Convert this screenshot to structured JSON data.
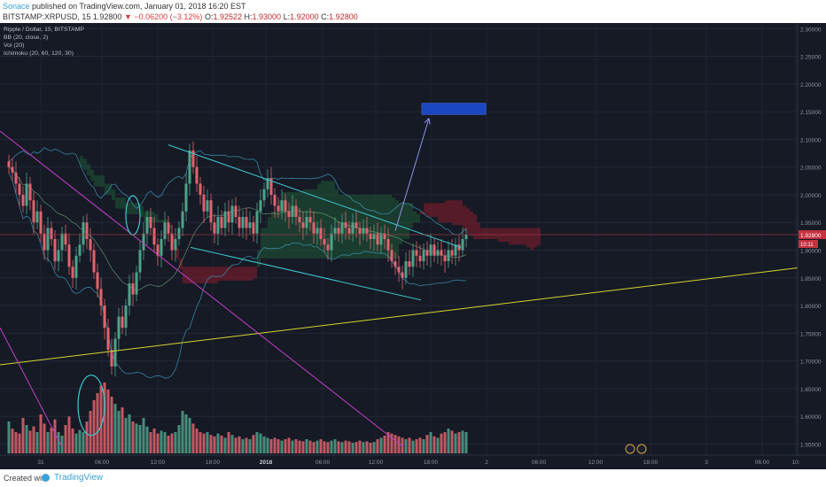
{
  "header": {
    "author": "Sonace",
    "published": " published on TradingView.com, January 01, 2018 16:20 EST",
    "symbol": "BITSTAMP:XRPUSD, 15",
    "last": "1.92800",
    "arrow": "▼",
    "change": "−0.06200 (−3.12%)",
    "o_label": "O:",
    "o_value": "1.92522",
    "h_label": "H:",
    "h_value": "1.93000",
    "l_label": "L:",
    "l_value": "1.92000",
    "c_label": "C:",
    "c_value": "1.92800"
  },
  "legend": [
    "Ripple / Dollar, 15, BITSTAMP",
    "BB (20, close, 2)",
    "Vol (20)",
    "Ichimoku (20, 60, 120, 30)"
  ],
  "price_label": "1.92800",
  "countdown": "10:11",
  "footer": {
    "created": "Created with",
    "brand": "TradingView"
  },
  "colors": {
    "background": "#161a25",
    "up": "#4ea38a",
    "down": "#e0646f",
    "trend_cyan": "#3ec9d3",
    "support_yellow": "#d6d62f",
    "resist_magenta": "#c43fc7",
    "target_box": "#1a47c0",
    "projection": "#8f94ea",
    "cloud_red": "#8b1e2e",
    "cloud_green": "#1f5a36"
  },
  "chart_data": {
    "type": "candlestick",
    "ylim": [
      1.53,
      2.31
    ],
    "y_ticks": [
      "2.30000",
      "2.25000",
      "2.20000",
      "2.15000",
      "2.10000",
      "2.05000",
      "2.00000",
      "1.95000",
      "1.90000",
      "1.85000",
      "1.80000",
      "1.75000",
      "1.70000",
      "1.65000",
      "1.60000",
      "1.55000"
    ],
    "x_ticks": [
      "31",
      "06:00",
      "12:00",
      "18:00",
      "2018",
      "06:00",
      "12:00",
      "18:00",
      "2",
      "06:00",
      "12:00",
      "18:00",
      "3",
      "06:00",
      "10:"
    ],
    "last_price": 1.928,
    "target_zone": [
      2.145,
      2.165
    ],
    "closes": [
      2.05,
      2.04,
      2.02,
      2.0,
      1.98,
      2.02,
      1.99,
      1.95,
      1.97,
      1.93,
      1.9,
      1.94,
      1.92,
      1.88,
      1.9,
      1.93,
      1.91,
      1.87,
      1.85,
      1.89,
      1.91,
      1.95,
      1.92,
      1.9,
      1.86,
      1.83,
      1.8,
      1.76,
      1.72,
      1.69,
      1.74,
      1.78,
      1.76,
      1.8,
      1.84,
      1.82,
      1.86,
      1.9,
      1.93,
      1.96,
      1.94,
      1.91,
      1.89,
      1.92,
      1.95,
      1.93,
      1.9,
      1.92,
      1.94,
      1.97,
      2.02,
      2.08,
      2.05,
      2.02,
      2.0,
      1.97,
      1.99,
      1.95,
      1.93,
      1.96,
      1.94,
      1.97,
      1.95,
      1.98,
      1.96,
      1.94,
      1.96,
      1.94,
      1.95,
      1.93,
      1.97,
      1.99,
      2.01,
      2.03,
      2.0,
      1.98,
      1.97,
      1.99,
      1.97,
      1.96,
      1.98,
      1.96,
      1.95,
      1.94,
      1.96,
      1.95,
      1.93,
      1.94,
      1.92,
      1.91,
      1.9,
      1.93,
      1.94,
      1.93,
      1.95,
      1.94,
      1.93,
      1.95,
      1.94,
      1.93,
      1.94,
      1.93,
      1.92,
      1.93,
      1.91,
      1.93,
      1.92,
      1.9,
      1.88,
      1.87,
      1.86,
      1.85,
      1.88,
      1.87,
      1.9,
      1.89,
      1.88,
      1.9,
      1.89,
      1.91,
      1.89,
      1.9,
      1.89,
      1.88,
      1.9,
      1.89,
      1.91,
      1.9,
      1.92,
      1.928
    ],
    "volumes": [
      0.45,
      0.35,
      0.3,
      0.28,
      0.5,
      0.4,
      0.32,
      0.38,
      0.3,
      0.55,
      0.42,
      0.3,
      0.36,
      0.48,
      0.3,
      0.25,
      0.4,
      0.52,
      0.35,
      0.28,
      0.33,
      0.3,
      0.45,
      0.6,
      0.75,
      0.85,
      0.95,
      1.0,
      0.9,
      0.8,
      0.7,
      0.6,
      0.65,
      0.5,
      0.55,
      0.45,
      0.42,
      0.4,
      0.5,
      0.38,
      0.3,
      0.35,
      0.28,
      0.32,
      0.3,
      0.25,
      0.28,
      0.3,
      0.4,
      0.6,
      0.55,
      0.5,
      0.42,
      0.35,
      0.3,
      0.28,
      0.3,
      0.26,
      0.24,
      0.28,
      0.25,
      0.22,
      0.3,
      0.26,
      0.22,
      0.24,
      0.2,
      0.22,
      0.2,
      0.26,
      0.3,
      0.28,
      0.24,
      0.22,
      0.2,
      0.22,
      0.2,
      0.18,
      0.2,
      0.22,
      0.18,
      0.2,
      0.18,
      0.17,
      0.2,
      0.18,
      0.16,
      0.18,
      0.2,
      0.17,
      0.16,
      0.18,
      0.2,
      0.17,
      0.16,
      0.18,
      0.17,
      0.15,
      0.16,
      0.18,
      0.16,
      0.17,
      0.15,
      0.16,
      0.2,
      0.22,
      0.25,
      0.3,
      0.28,
      0.26,
      0.24,
      0.22,
      0.2,
      0.22,
      0.18,
      0.2,
      0.22,
      0.2,
      0.26,
      0.3,
      0.24,
      0.22,
      0.28,
      0.3,
      0.35,
      0.32,
      0.28,
      0.3,
      0.32,
      0.3
    ]
  }
}
